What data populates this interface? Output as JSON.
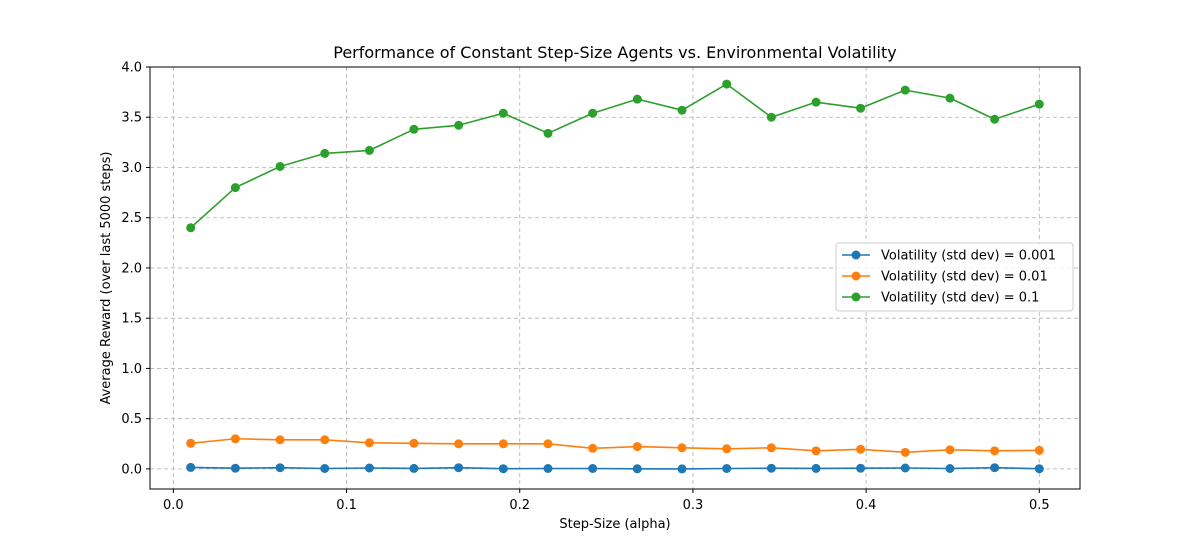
{
  "chart_data": {
    "type": "line",
    "title": "Performance of Constant Step-Size Agents vs. Environmental Volatility",
    "xlabel": "Step-Size (alpha)",
    "ylabel": "Average Reward (over last 5000 steps)",
    "xlim": [
      -0.0135,
      0.5235
    ],
    "ylim": [
      -0.2,
      4.0
    ],
    "x_ticks": [
      "0.0",
      "0.1",
      "0.2",
      "0.3",
      "0.4",
      "0.5"
    ],
    "y_ticks": [
      "0.0",
      "0.5",
      "1.0",
      "1.5",
      "2.0",
      "2.5",
      "3.0",
      "3.5",
      "4.0"
    ],
    "grid": true,
    "legend_position": "center-right",
    "x": [
      0.01,
      0.0358,
      0.0616,
      0.0874,
      0.1132,
      0.1389,
      0.1647,
      0.1905,
      0.2163,
      0.2421,
      0.2679,
      0.2937,
      0.3195,
      0.3453,
      0.3711,
      0.3968,
      0.4226,
      0.4484,
      0.4742,
      0.5
    ],
    "series": [
      {
        "name": "Volatility (std dev) = 0.001",
        "color": "#1f77b4",
        "values": [
          0.015,
          0.007,
          0.012,
          0.004,
          0.009,
          0.005,
          0.012,
          0.002,
          0.004,
          0.004,
          0.001,
          0.0,
          0.004,
          0.007,
          0.005,
          0.007,
          0.009,
          0.004,
          0.012,
          0.002
        ]
      },
      {
        "name": "Volatility (std dev) = 0.01",
        "color": "#ff7f0e",
        "values": [
          0.255,
          0.3,
          0.29,
          0.29,
          0.26,
          0.255,
          0.25,
          0.25,
          0.25,
          0.205,
          0.222,
          0.21,
          0.2,
          0.21,
          0.18,
          0.195,
          0.165,
          0.19,
          0.18,
          0.185
        ]
      },
      {
        "name": "Volatility (std dev) = 0.1",
        "color": "#2ca02c",
        "values": [
          2.4,
          2.8,
          3.01,
          3.14,
          3.17,
          3.38,
          3.42,
          3.54,
          3.34,
          3.54,
          3.68,
          3.57,
          3.83,
          3.5,
          3.65,
          3.59,
          3.77,
          3.69,
          3.48,
          3.63
        ]
      }
    ]
  }
}
